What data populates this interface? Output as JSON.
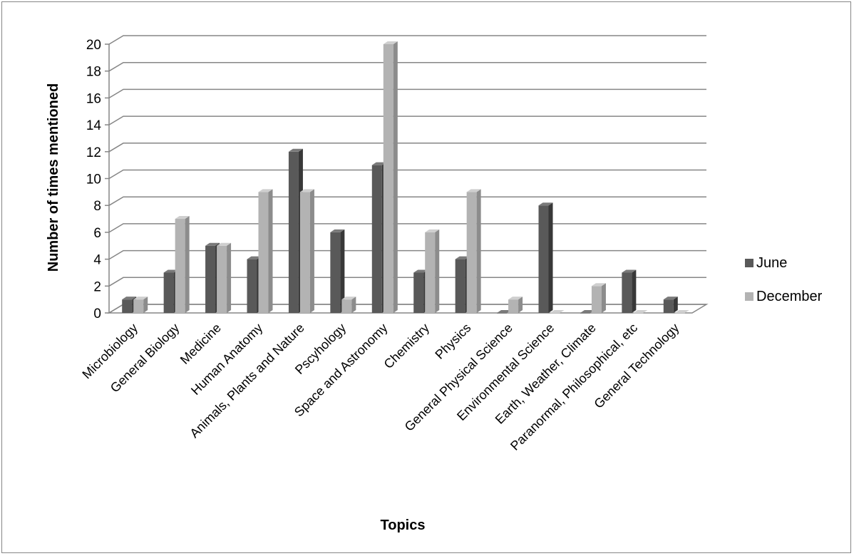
{
  "chart_data": {
    "type": "bar",
    "style": "3d-clustered-column",
    "categories": [
      "Microbiology",
      "General Biology",
      "Medicine",
      "Human Anatomy",
      "Animals, Plants and Nature",
      "Pscyhology",
      "Space and Astronomy",
      "Chemistry",
      "Physics",
      "General Physical Science",
      "Environmental Science",
      "Earth, Weather, Climate",
      "Paranormal, Philosophical, etc",
      "General Technology"
    ],
    "series": [
      {
        "name": "June",
        "values": [
          1,
          3,
          5,
          4,
          12,
          6,
          11,
          3,
          4,
          0,
          8,
          0,
          3,
          1
        ],
        "color": "#595959",
        "side_color": "#383838",
        "top_color": "#7a7a7a"
      },
      {
        "name": "December",
        "values": [
          1,
          7,
          5,
          9,
          9,
          1,
          20,
          6,
          9,
          1,
          0,
          2,
          0,
          0
        ],
        "color": "#b3b3b3",
        "side_color": "#8c8c8c",
        "top_color": "#cfcfcf"
      }
    ],
    "xlabel": "Topics",
    "ylabel": "Number of times mentioned",
    "ylim": [
      0,
      20
    ],
    "yticks": [
      0,
      2,
      4,
      6,
      8,
      10,
      12,
      14,
      16,
      18,
      20
    ],
    "grid": true,
    "gridline_color": "#868686",
    "legend_position": "right"
  }
}
